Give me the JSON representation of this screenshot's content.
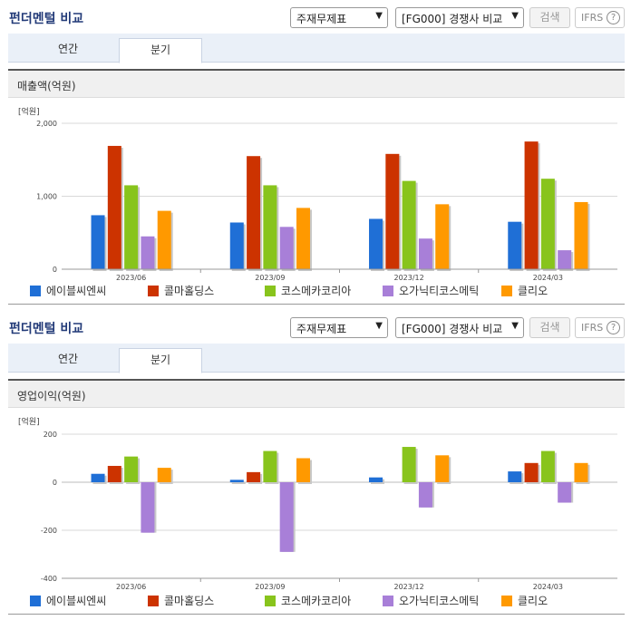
{
  "panels": [
    {
      "title": "펀더멘털 비교",
      "select1": "주재무제표",
      "select2": "[FG000] 경쟁사 비교",
      "search_label": "검색",
      "ifrs_label": "IFRS",
      "tabs": [
        "연간",
        "분기"
      ],
      "active_tab": "분기",
      "metric_label": "매출액(억원)",
      "unit_label": "[억원]"
    },
    {
      "title": "펀더멘털 비교",
      "select1": "주재무제표",
      "select2": "[FG000] 경쟁사 비교",
      "search_label": "검색",
      "ifrs_label": "IFRS",
      "tabs": [
        "연간",
        "분기"
      ],
      "active_tab": "분기",
      "metric_label": "영업이익(억원)",
      "unit_label": "[억원]"
    }
  ],
  "colors": [
    "#1f6fd6",
    "#cc3300",
    "#88c41c",
    "#a87fd8",
    "#ff9900"
  ],
  "chart_data": [
    {
      "type": "bar",
      "title": "매출액(억원)",
      "ylabel": "[억원]",
      "categories": [
        "2023/06",
        "2023/09",
        "2023/12",
        "2024/03"
      ],
      "ylim": [
        0,
        2000
      ],
      "yticks": [
        0,
        1000,
        2000
      ],
      "ytick_labels": [
        "0",
        "1,000",
        "2,000"
      ],
      "series": [
        {
          "name": "에이블씨엔씨",
          "values": [
            740,
            640,
            690,
            650
          ]
        },
        {
          "name": "콜마홀딩스",
          "values": [
            1690,
            1550,
            1580,
            1750
          ]
        },
        {
          "name": "코스메카코리아",
          "values": [
            1150,
            1150,
            1210,
            1240
          ]
        },
        {
          "name": "오가닉티코스메틱",
          "values": [
            450,
            580,
            420,
            260
          ]
        },
        {
          "name": "클리오",
          "values": [
            800,
            840,
            890,
            920
          ]
        }
      ]
    },
    {
      "type": "bar",
      "title": "영업이익(억원)",
      "ylabel": "[억원]",
      "categories": [
        "2023/06",
        "2023/09",
        "2023/12",
        "2024/03"
      ],
      "ylim": [
        -400,
        200
      ],
      "yticks": [
        -400,
        -200,
        0,
        200
      ],
      "ytick_labels": [
        "-400",
        "-200",
        "0",
        "200"
      ],
      "series": [
        {
          "name": "에이블씨엔씨",
          "values": [
            35,
            10,
            20,
            45
          ]
        },
        {
          "name": "콜마홀딩스",
          "values": [
            68,
            42,
            0,
            80
          ]
        },
        {
          "name": "코스메카코리아",
          "values": [
            107,
            130,
            147,
            130
          ]
        },
        {
          "name": "오가닉티코스메틱",
          "values": [
            -210,
            -290,
            -105,
            -85
          ]
        },
        {
          "name": "클리오",
          "values": [
            60,
            100,
            112,
            80
          ]
        }
      ]
    }
  ]
}
